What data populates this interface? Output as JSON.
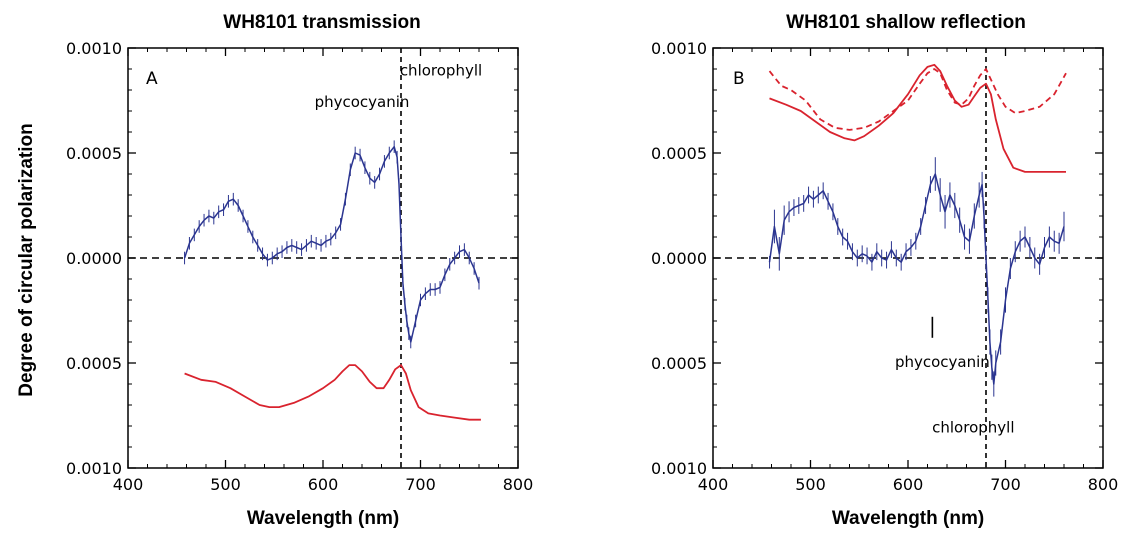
{
  "figure": {
    "ylabel": "Degree of circular polarization"
  },
  "chart_data": [
    {
      "type": "line",
      "panel": "A",
      "title": "WH8101 transmission",
      "xlabel": "Wavelength (nm)",
      "ylabel": "Degree of circular polarization",
      "xlim": [
        400,
        800
      ],
      "ylim": [
        -0.001,
        0.001
      ],
      "xticks": [
        400,
        500,
        600,
        700,
        800
      ],
      "yticks": [
        -0.001,
        -0.0005,
        0,
        0.0005,
        0.001
      ],
      "xtick_labels": [
        "400",
        "500",
        "600",
        "700",
        "800"
      ],
      "ytick_labels": [
        "0.0010",
        "0.0005",
        "0.0000",
        "0.0005",
        "0.0010"
      ],
      "reference_lines": {
        "horizontal_y": 0,
        "vertical_x": 680
      },
      "annotations": [
        {
          "text": "chlorophyll",
          "x": 680,
          "y": 0.00087
        },
        {
          "text": "phycocyanin",
          "x": 640,
          "y": 0.00072
        }
      ],
      "colors": {
        "polarization": "#2b3590",
        "spectrum": "#d9232e"
      },
      "series": [
        {
          "role": "polarization",
          "x": [
            458,
            463,
            468,
            473,
            478,
            483,
            488,
            493,
            498,
            503,
            508,
            513,
            518,
            523,
            528,
            533,
            538,
            543,
            548,
            553,
            558,
            563,
            568,
            573,
            578,
            583,
            588,
            593,
            598,
            603,
            608,
            613,
            618,
            623,
            628,
            633,
            638,
            643,
            648,
            653,
            658,
            663,
            668,
            673,
            676,
            678,
            680,
            682,
            684,
            686,
            688,
            690,
            695,
            700,
            705,
            710,
            715,
            720,
            725,
            730,
            735,
            740,
            745,
            750,
            755,
            760
          ],
          "y": [
            0.0,
            7e-05,
            0.00011,
            0.00015,
            0.00018,
            0.0002,
            0.00019,
            0.00022,
            0.00023,
            0.00027,
            0.00028,
            0.00025,
            0.0002,
            0.00015,
            0.0001,
            6e-05,
            2e-05,
            -1e-05,
            0.0,
            2e-05,
            3e-05,
            5e-05,
            6e-05,
            5e-05,
            4e-05,
            6e-05,
            8e-05,
            7e-05,
            6e-05,
            8e-05,
            9e-05,
            0.00012,
            0.00016,
            0.00028,
            0.00042,
            0.0005,
            0.00049,
            0.00043,
            0.00038,
            0.00036,
            0.0004,
            0.00046,
            0.0005,
            0.00053,
            0.00048,
            0.00035,
            0.0001,
            -0.00012,
            -0.00022,
            -0.0003,
            -0.00036,
            -0.0004,
            -0.0003,
            -0.0002,
            -0.00017,
            -0.00015,
            -0.00015,
            -0.00014,
            -8e-05,
            -3e-05,
            0.0,
            3e-05,
            4e-05,
            0.0,
            -5e-05,
            -0.00012
          ],
          "errors": [
            3e-05,
            3e-05,
            3e-05,
            3e-05,
            3e-05,
            3e-05,
            3e-05,
            3e-05,
            3e-05,
            3e-05,
            3e-05,
            3e-05,
            3e-05,
            3e-05,
            3e-05,
            3e-05,
            3e-05,
            3e-05,
            3e-05,
            3e-05,
            3e-05,
            3e-05,
            3e-05,
            3e-05,
            3e-05,
            3e-05,
            3e-05,
            3e-05,
            3e-05,
            3e-05,
            3e-05,
            3e-05,
            3e-05,
            3e-05,
            3e-05,
            3e-05,
            3e-05,
            3e-05,
            3e-05,
            3e-05,
            3e-05,
            3e-05,
            3e-05,
            3e-05,
            3e-05,
            3e-05,
            3e-05,
            3e-05,
            3e-05,
            3e-05,
            3e-05,
            3e-05,
            3e-05,
            3e-05,
            3e-05,
            3e-05,
            3e-05,
            3e-05,
            3e-05,
            3e-05,
            3e-05,
            3e-05,
            3e-05,
            3e-05,
            3e-05,
            3e-05
          ]
        },
        {
          "role": "spectrum",
          "x": [
            458,
            475,
            490,
            505,
            520,
            535,
            545,
            555,
            570,
            585,
            600,
            612,
            620,
            627,
            633,
            640,
            648,
            655,
            662,
            668,
            674,
            680,
            685,
            690,
            698,
            708,
            720,
            735,
            750,
            762
          ],
          "y": [
            -0.00055,
            -0.00058,
            -0.00059,
            -0.00062,
            -0.00066,
            -0.0007,
            -0.00071,
            -0.00071,
            -0.00069,
            -0.00066,
            -0.00062,
            -0.00058,
            -0.00054,
            -0.00051,
            -0.00051,
            -0.00054,
            -0.00059,
            -0.00062,
            -0.00062,
            -0.00058,
            -0.00053,
            -0.00051,
            -0.00055,
            -0.00063,
            -0.00071,
            -0.00074,
            -0.00075,
            -0.00076,
            -0.00077,
            -0.00077
          ]
        }
      ]
    },
    {
      "type": "line",
      "panel": "B",
      "title": "WH8101 shallow reflection",
      "xlabel": "Wavelength (nm)",
      "ylabel": "",
      "xlim": [
        400,
        800
      ],
      "ylim": [
        -0.001,
        0.001
      ],
      "xticks": [
        400,
        500,
        600,
        700,
        800
      ],
      "yticks": [
        -0.001,
        -0.0005,
        0,
        0.0005,
        0.001
      ],
      "xtick_labels": [
        "400",
        "500",
        "600",
        "700",
        "800"
      ],
      "ytick_labels": [
        "0.0010",
        "0.0005",
        "0.0000",
        "0.0005",
        "0.0010"
      ],
      "reference_lines": {
        "horizontal_y": 0,
        "vertical_x": 680
      },
      "annotations": [
        {
          "text": "phycocyanin",
          "x": 625,
          "y": -0.00052
        },
        {
          "text": "chlorophyll",
          "x": 667,
          "y": -0.00083
        }
      ],
      "marker": {
        "x": 625,
        "y_from": -0.00028,
        "y_to": -0.00038
      },
      "colors": {
        "polarization": "#2b3590",
        "spectrum": "#d9232e"
      },
      "series": [
        {
          "role": "polarization",
          "x": [
            458,
            463,
            468,
            473,
            478,
            483,
            488,
            493,
            498,
            503,
            508,
            513,
            518,
            523,
            528,
            533,
            538,
            543,
            548,
            553,
            558,
            563,
            568,
            573,
            578,
            583,
            588,
            593,
            598,
            603,
            608,
            613,
            618,
            623,
            628,
            633,
            638,
            643,
            648,
            653,
            658,
            663,
            668,
            673,
            676,
            678,
            680,
            682,
            684,
            686,
            688,
            690,
            695,
            700,
            705,
            710,
            715,
            720,
            725,
            730,
            735,
            740,
            745,
            750,
            755,
            760
          ],
          "y": [
            -2e-05,
            0.00015,
            2e-05,
            0.00018,
            0.00022,
            0.00024,
            0.00025,
            0.00026,
            0.0003,
            0.00028,
            0.0003,
            0.00032,
            0.00027,
            0.00022,
            0.00015,
            0.0001,
            8e-05,
            3e-05,
            0.0,
            2e-05,
            1e-05,
            -2e-05,
            3e-05,
            0.0,
            -1e-05,
            4e-05,
            0.0,
            -2e-05,
            3e-05,
            5e-05,
            8e-05,
            0.00015,
            0.00025,
            0.00035,
            0.0004,
            0.0003,
            0.00022,
            0.0003,
            0.00025,
            0.00018,
            0.0001,
            8e-05,
            0.0002,
            0.0003,
            0.00035,
            0.0002,
            0.0,
            -0.0002,
            -0.0004,
            -0.00052,
            -0.0006,
            -0.0005,
            -0.0004,
            -0.0002,
            -5e-05,
            3e-05,
            8e-05,
            0.0001,
            5e-05,
            0.0,
            -3e-05,
            5e-05,
            0.0001,
            8e-05,
            7e-05,
            0.00015
          ],
          "errors": [
            3e-05,
            8e-05,
            8e-05,
            7e-05,
            5e-05,
            4e-05,
            4e-05,
            4e-05,
            4e-05,
            4e-05,
            4e-05,
            4e-05,
            4e-05,
            4e-05,
            4e-05,
            4e-05,
            4e-05,
            4e-05,
            4e-05,
            4e-05,
            4e-05,
            4e-05,
            4e-05,
            4e-05,
            4e-05,
            4e-05,
            4e-05,
            4e-05,
            4e-05,
            4e-05,
            4e-05,
            4e-05,
            4e-05,
            4e-05,
            8e-05,
            8e-05,
            8e-05,
            6e-05,
            6e-05,
            6e-05,
            6e-05,
            6e-05,
            6e-05,
            6e-05,
            6e-05,
            6e-05,
            6e-05,
            6e-05,
            6e-05,
            6e-05,
            6e-05,
            6e-05,
            6e-05,
            6e-05,
            5e-05,
            5e-05,
            5e-05,
            5e-05,
            5e-05,
            5e-05,
            5e-05,
            5e-05,
            5e-05,
            5e-05,
            5e-05,
            7e-05
          ]
        },
        {
          "role": "spectrum",
          "x": [
            458,
            475,
            490,
            505,
            520,
            535,
            545,
            555,
            570,
            585,
            600,
            612,
            620,
            627,
            633,
            640,
            648,
            655,
            662,
            668,
            674,
            680,
            685,
            690,
            698,
            708,
            720,
            735,
            750,
            762
          ],
          "y": [
            0.00076,
            0.00073,
            0.0007,
            0.00065,
            0.0006,
            0.00057,
            0.00056,
            0.00058,
            0.00063,
            0.00069,
            0.00078,
            0.00087,
            0.00091,
            0.00092,
            0.00089,
            0.00082,
            0.00075,
            0.00072,
            0.00073,
            0.00077,
            0.00081,
            0.00083,
            0.00078,
            0.00066,
            0.00052,
            0.00043,
            0.00041,
            0.00041,
            0.00041,
            0.00041
          ]
        },
        {
          "role": "spectrum-dashed",
          "x": [
            458,
            470,
            480,
            495,
            510,
            525,
            540,
            555,
            570,
            585,
            600,
            612,
            620,
            627,
            633,
            640,
            648,
            655,
            662,
            668,
            674,
            680,
            685,
            692,
            700,
            710,
            720,
            735,
            750,
            762
          ],
          "y": [
            0.00089,
            0.00082,
            0.0008,
            0.00075,
            0.00066,
            0.00062,
            0.00061,
            0.00062,
            0.00065,
            0.0007,
            0.00075,
            0.00083,
            0.00088,
            0.0009,
            0.00088,
            0.0008,
            0.00074,
            0.00073,
            0.00076,
            0.00082,
            0.00087,
            0.0009,
            0.00085,
            0.00078,
            0.00072,
            0.00069,
            0.0007,
            0.00072,
            0.00078,
            0.00088
          ]
        }
      ]
    }
  ]
}
